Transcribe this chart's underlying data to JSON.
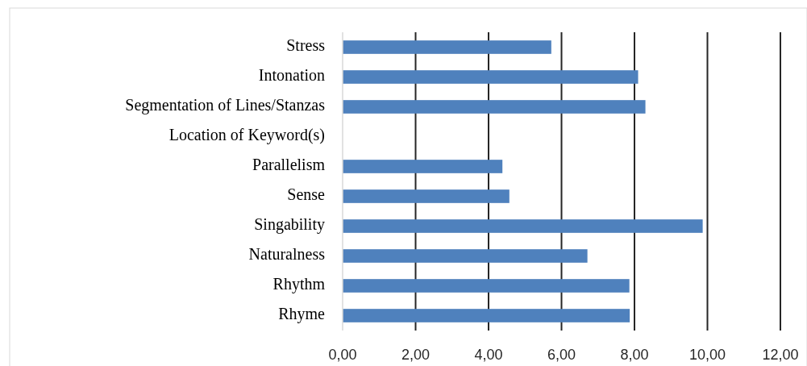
{
  "chart_data": {
    "type": "bar",
    "orientation": "horizontal",
    "categories": [
      "Stress",
      "Intonation",
      "Segmentation of Lines/Stanzas",
      "Location of Keyword(s)",
      "Parallelism",
      "Sense",
      "Singability",
      "Naturalness",
      "Rhythm",
      "Rhyme"
    ],
    "values": [
      5.72,
      8.1,
      8.3,
      0,
      4.38,
      4.57,
      9.87,
      6.71,
      7.86,
      7.87
    ],
    "color": "#4f81bd",
    "xlim": [
      0,
      12
    ],
    "xticks": [
      {
        "value": 0,
        "label": "0,00"
      },
      {
        "value": 2,
        "label": "2,00"
      },
      {
        "value": 4,
        "label": "4,00"
      },
      {
        "value": 6,
        "label": "6,00"
      },
      {
        "value": 8,
        "label": "8,00"
      },
      {
        "value": 10,
        "label": "10,00"
      },
      {
        "value": 12,
        "label": "12,00"
      }
    ],
    "grid": "x"
  }
}
